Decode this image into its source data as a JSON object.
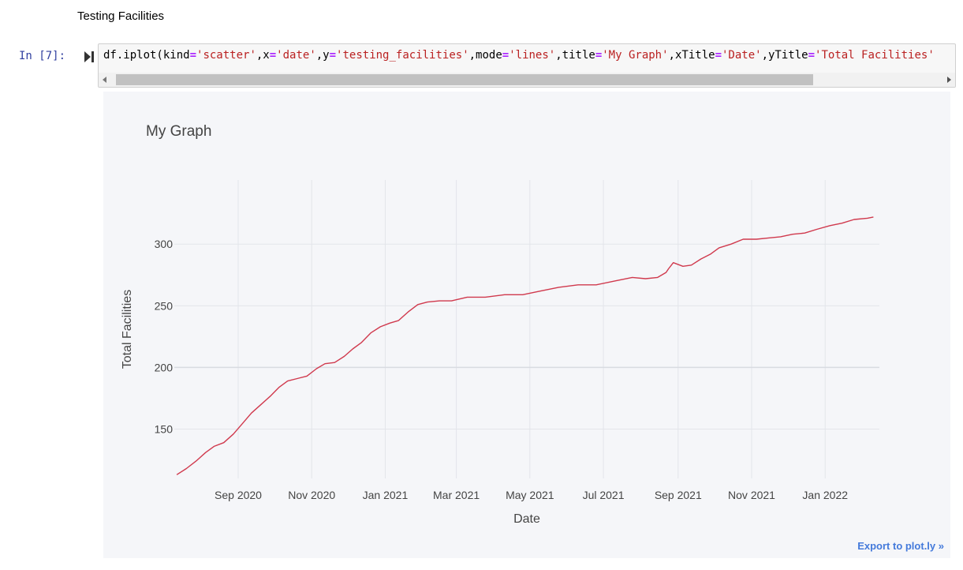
{
  "notebook": {
    "markdown_heading": "Testing Facilities",
    "cell": {
      "prompt": "In [7]:",
      "code_tokens": [
        {
          "t": "df.iplot(kind",
          "c": "plain"
        },
        {
          "t": "=",
          "c": "op"
        },
        {
          "t": "'scatter'",
          "c": "str"
        },
        {
          "t": ",x",
          "c": "plain"
        },
        {
          "t": "=",
          "c": "op"
        },
        {
          "t": "'date'",
          "c": "str"
        },
        {
          "t": ",y",
          "c": "plain"
        },
        {
          "t": "=",
          "c": "op"
        },
        {
          "t": "'testing_facilities'",
          "c": "str"
        },
        {
          "t": ",mode",
          "c": "plain"
        },
        {
          "t": "=",
          "c": "op"
        },
        {
          "t": "'lines'",
          "c": "str"
        },
        {
          "t": ",title",
          "c": "plain"
        },
        {
          "t": "=",
          "c": "op"
        },
        {
          "t": "'My Graph'",
          "c": "str"
        },
        {
          "t": ",xTitle",
          "c": "plain"
        },
        {
          "t": "=",
          "c": "op"
        },
        {
          "t": "'Date'",
          "c": "str"
        },
        {
          "t": ",yTitle",
          "c": "plain"
        },
        {
          "t": "=",
          "c": "op"
        },
        {
          "t": "'Total Facilities'",
          "c": "str"
        }
      ]
    },
    "export_link": "Export to plot.ly »"
  },
  "colors": {
    "line": "#d0394d",
    "plot_bg": "#f5f6f9",
    "grid": "#e3e5ea",
    "text": "#444444"
  },
  "chart_data": {
    "type": "line",
    "title": "My Graph",
    "xlabel": "Date",
    "ylabel": "Total Facilities",
    "x_tick_labels": [
      "Sep 2020",
      "Nov 2020",
      "Jan 2021",
      "Mar 2021",
      "May 2021",
      "Jul 2021",
      "Sep 2021",
      "Nov 2021",
      "Jan 2022"
    ],
    "x_tick_dates": [
      "2020-09-01",
      "2020-11-01",
      "2021-01-01",
      "2021-03-01",
      "2021-05-01",
      "2021-07-01",
      "2021-09-01",
      "2021-11-01",
      "2022-01-01"
    ],
    "xlim": [
      "2020-07-10",
      "2022-02-15"
    ],
    "y_ticks": [
      150,
      200,
      250,
      300
    ],
    "ylim": [
      110,
      352
    ],
    "grid": true,
    "series": [
      {
        "x": [
          "2020-07-12",
          "2020-07-20",
          "2020-07-28",
          "2020-08-05",
          "2020-08-12",
          "2020-08-20",
          "2020-08-28",
          "2020-09-05",
          "2020-09-12",
          "2020-09-20",
          "2020-09-28",
          "2020-10-05",
          "2020-10-12",
          "2020-10-20",
          "2020-10-28",
          "2020-11-05",
          "2020-11-12",
          "2020-11-20",
          "2020-11-28",
          "2020-12-05",
          "2020-12-12",
          "2020-12-20",
          "2020-12-28",
          "2021-01-05",
          "2021-01-12",
          "2021-01-20",
          "2021-01-28",
          "2021-02-05",
          "2021-02-15",
          "2021-02-25",
          "2021-03-10",
          "2021-03-25",
          "2021-04-10",
          "2021-04-25",
          "2021-05-10",
          "2021-05-25",
          "2021-06-10",
          "2021-06-25",
          "2021-07-10",
          "2021-07-25",
          "2021-08-05",
          "2021-08-15",
          "2021-08-22",
          "2021-08-24",
          "2021-08-28",
          "2021-09-05",
          "2021-09-12",
          "2021-09-20",
          "2021-09-28",
          "2021-10-05",
          "2021-10-15",
          "2021-10-25",
          "2021-11-05",
          "2021-11-15",
          "2021-11-25",
          "2021-12-05",
          "2021-12-15",
          "2021-12-25",
          "2022-01-05",
          "2022-01-15",
          "2022-01-25",
          "2022-02-05",
          "2022-02-10"
        ],
        "y": [
          113,
          118,
          124,
          131,
          136,
          139,
          146,
          155,
          163,
          170,
          177,
          184,
          189,
          191,
          193,
          199,
          203,
          204,
          209,
          215,
          220,
          228,
          233,
          236,
          238,
          245,
          251,
          253,
          254,
          254,
          257,
          257,
          259,
          259,
          262,
          265,
          267,
          267,
          270,
          273,
          272,
          273,
          277,
          280,
          285,
          282,
          283,
          288,
          292,
          297,
          300,
          304,
          304,
          305,
          306,
          308,
          309,
          312,
          315,
          317,
          320,
          321,
          322
        ]
      }
    ]
  }
}
